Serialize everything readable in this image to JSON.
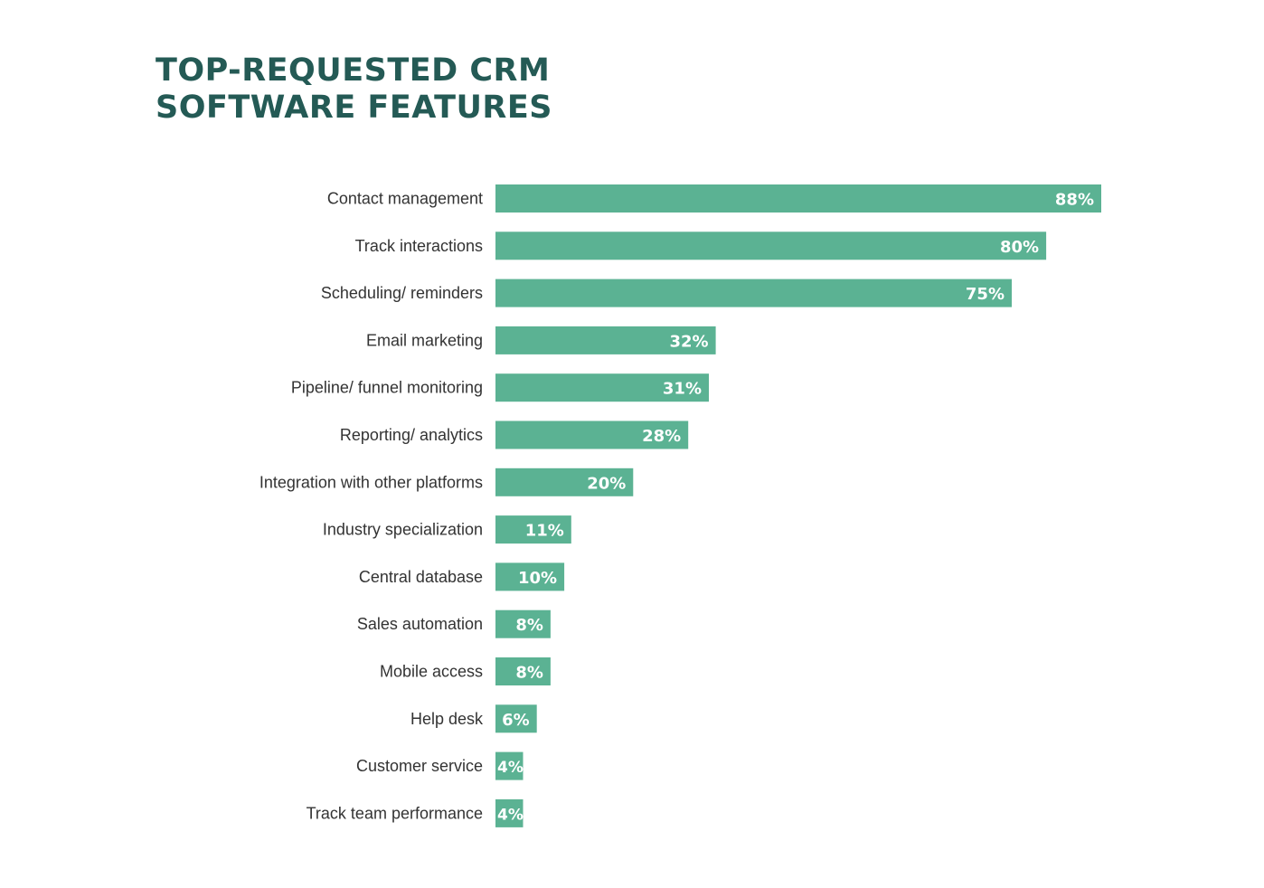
{
  "title": {
    "line1": "TOP-REQUESTED CRM",
    "line2": "SOFTWARE FEATURES"
  },
  "colors": {
    "bar": "#5bb293",
    "title": "#245a55",
    "label": "#333333",
    "value_text": "#ffffff"
  },
  "chart_data": {
    "type": "bar",
    "orientation": "horizontal",
    "categories": [
      "Contact management",
      "Track interactions",
      "Scheduling/ reminders",
      "Email marketing",
      "Pipeline/ funnel monitoring",
      "Reporting/ analytics",
      "Integration with other platforms",
      "Industry specialization",
      "Central database",
      "Sales automation",
      "Mobile access",
      "Help desk",
      "Customer service",
      "Track team performance"
    ],
    "values": [
      88,
      80,
      75,
      32,
      31,
      28,
      20,
      11,
      10,
      8,
      8,
      6,
      4,
      4
    ],
    "value_labels": [
      "88%",
      "80%",
      "75%",
      "32%",
      "31%",
      "28%",
      "20%",
      "11%",
      "10%",
      "8%",
      "8%",
      "6%",
      "4%",
      "4%"
    ],
    "unit": "%",
    "xlim": [
      0,
      88
    ],
    "grid": false,
    "legend": "none"
  }
}
